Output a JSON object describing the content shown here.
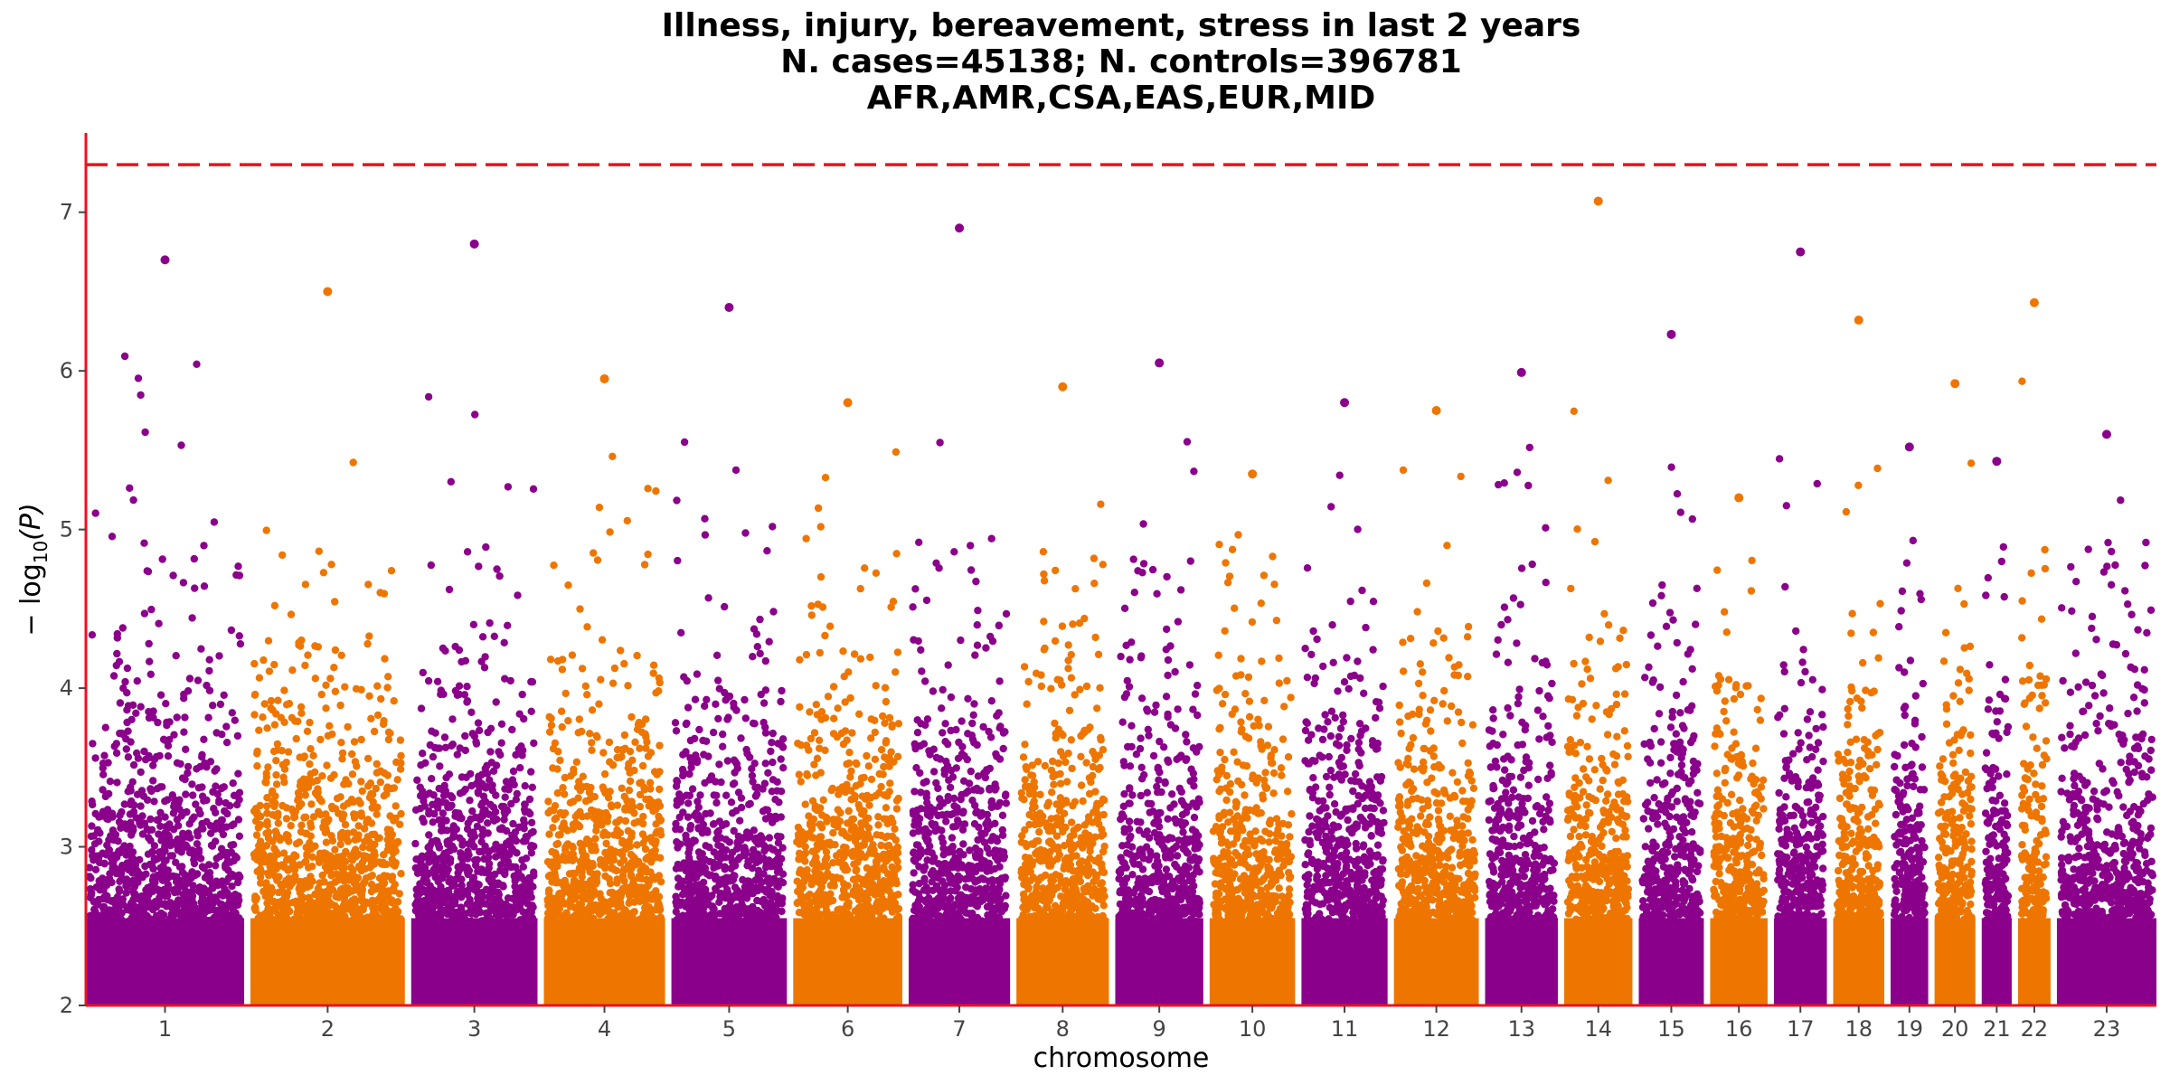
{
  "chart_data": {
    "type": "scatter",
    "subtype": "manhattan",
    "title_lines": [
      "Illness, injury, bereavement, stress in last 2 years",
      "N. cases=45138; N. controls=396781",
      "AFR,AMR,CSA,EAS,EUR,MID"
    ],
    "xlabel": "chromosome",
    "ylabel_prefix": "− log",
    "ylabel_subscript": "10",
    "ylabel_suffix": "(P)",
    "ylim": [
      2,
      7.5
    ],
    "y_ticks": [
      "2",
      "3",
      "4",
      "5",
      "6",
      "7"
    ],
    "significance_threshold": 7.3,
    "threshold_color": "#e8141b",
    "axis_color": "#e8141b",
    "grid": false,
    "colors": {
      "odd": "#8b008b",
      "even": "#ee7600"
    },
    "chromosomes": [
      {
        "label": "1",
        "length": 248,
        "peak": 6.7
      },
      {
        "label": "2",
        "length": 242,
        "peak": 6.5
      },
      {
        "label": "3",
        "length": 198,
        "peak": 6.8
      },
      {
        "label": "4",
        "length": 190,
        "peak": 5.95
      },
      {
        "label": "5",
        "length": 181,
        "peak": 6.4
      },
      {
        "label": "6",
        "length": 171,
        "peak": 5.8
      },
      {
        "label": "7",
        "length": 159,
        "peak": 6.9
      },
      {
        "label": "8",
        "length": 145,
        "peak": 5.9
      },
      {
        "label": "9",
        "length": 138,
        "peak": 6.05
      },
      {
        "label": "10",
        "length": 134,
        "peak": 5.35
      },
      {
        "label": "11",
        "length": 135,
        "peak": 5.8
      },
      {
        "label": "12",
        "length": 133,
        "peak": 5.75
      },
      {
        "label": "13",
        "length": 114,
        "peak": 5.99
      },
      {
        "label": "14",
        "length": 107,
        "peak": 7.07
      },
      {
        "label": "15",
        "length": 102,
        "peak": 6.23
      },
      {
        "label": "16",
        "length": 90,
        "peak": 5.2
      },
      {
        "label": "17",
        "length": 83,
        "peak": 6.75
      },
      {
        "label": "18",
        "length": 80,
        "peak": 6.32
      },
      {
        "label": "19",
        "length": 59,
        "peak": 5.52
      },
      {
        "label": "20",
        "length": 64,
        "peak": 5.92
      },
      {
        "label": "21",
        "length": 47,
        "peak": 5.43
      },
      {
        "label": "22",
        "length": 51,
        "peak": 6.43
      },
      {
        "label": "23",
        "length": 156,
        "peak": 5.6
      }
    ]
  }
}
